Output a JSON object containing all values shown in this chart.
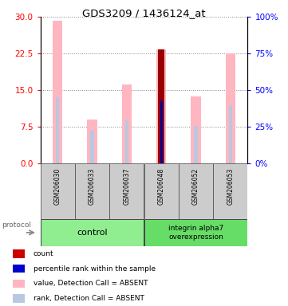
{
  "title": "GDS3209 / 1436124_at",
  "samples": [
    "GSM206030",
    "GSM206033",
    "GSM206037",
    "GSM206048",
    "GSM206052",
    "GSM206053"
  ],
  "value_bars": [
    29.2,
    9.0,
    16.2,
    23.4,
    13.8,
    22.5
  ],
  "rank_bars": [
    13.5,
    6.8,
    9.0,
    13.0,
    7.8,
    12.0
  ],
  "count_val": 23.4,
  "count_rank_val": 13.0,
  "count_index": 3,
  "ylim_left": [
    0,
    30
  ],
  "ylim_right": [
    0,
    100
  ],
  "yticks_left": [
    0,
    7.5,
    15,
    22.5,
    30
  ],
  "yticks_right": [
    0,
    25,
    50,
    75,
    100
  ],
  "value_color_absent": "#FFB6C1",
  "rank_color_absent": "#B8C8E0",
  "count_color": "#990000",
  "count_rank_color": "#000099",
  "bg_sample_row": "#CCCCCC",
  "bg_group_control": "#90EE90",
  "bg_group_overexp": "#66DD66",
  "legend_items": [
    {
      "color": "#CC0000",
      "label": "count"
    },
    {
      "color": "#0000CC",
      "label": "percentile rank within the sample"
    },
    {
      "color": "#FFB6C1",
      "label": "value, Detection Call = ABSENT"
    },
    {
      "color": "#B8C8E0",
      "label": "rank, Detection Call = ABSENT"
    }
  ]
}
